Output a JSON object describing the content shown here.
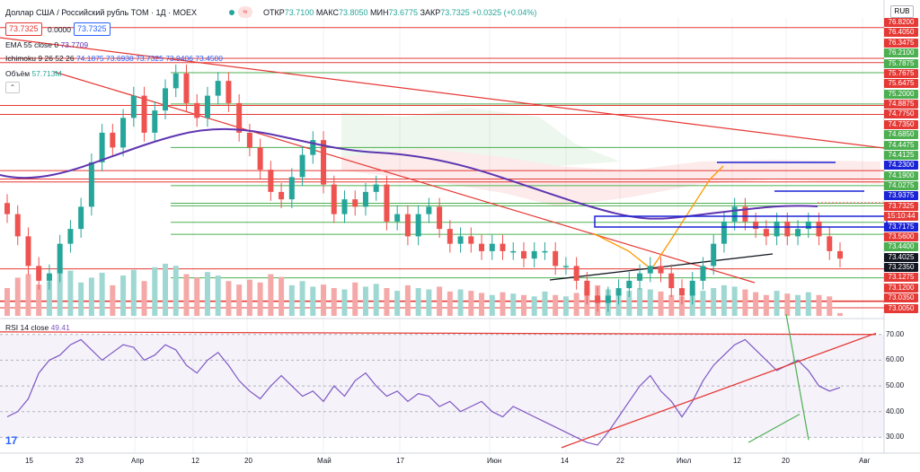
{
  "header": {
    "title": "Доллар США / Российский рубль TOM · 1Д · MOEX",
    "open_label": "ОТКР",
    "open": "73.7100",
    "high_label": "МАКС",
    "high": "73.8050",
    "low_label": "МИН",
    "low": "73.6775",
    "close_label": "ЗАКР",
    "close": "73.7325",
    "change": "+0.0325 (+0.04%)",
    "sell_box": "73.7325",
    "spread_box": "0.0000",
    "buy_box": "73.7325"
  },
  "indicators": {
    "ema_label": "EMA 55 close 0",
    "ema_value": "73.7709",
    "ichimoku_label": "Ichimoku 9 26 52 26",
    "ichimoku_values": "74.1875  73.6938  73.7325  73.9406  73.4500",
    "volume_label": "Объём",
    "volume_value": "57.713M",
    "rsi_label": "RSI 14 close",
    "rsi_value": "49.41"
  },
  "currency_button": "RUB",
  "colors": {
    "up": "#26a69a",
    "down": "#ef5350",
    "ema": "#5e35b1",
    "rsi": "#7e57c2",
    "hline_red": "#e53935",
    "hline_green": "#4caf50",
    "box_blue": "#1a23d6"
  },
  "price_axis_labels": [
    {
      "text": "76.8200",
      "color": "#e53935"
    },
    {
      "text": "76.4050",
      "color": "#e53935"
    },
    {
      "text": "76.3475",
      "color": "#e53935"
    },
    {
      "text": "76.2100",
      "color": "#4caf50"
    },
    {
      "text": "75.7875",
      "color": "#4caf50"
    },
    {
      "text": "75.7675",
      "color": "#e53935"
    },
    {
      "text": "75.6475",
      "color": "#e53935"
    },
    {
      "text": "75.2000",
      "color": "#4caf50"
    },
    {
      "text": "74.8875",
      "color": "#e53935"
    },
    {
      "text": "74.7750",
      "color": "#e53935"
    },
    {
      "text": "74.7350",
      "color": "#e53935"
    },
    {
      "text": "74.6850",
      "color": "#4caf50"
    },
    {
      "text": "74.4475",
      "color": "#4caf50"
    },
    {
      "text": "74.4125",
      "color": "#4caf50"
    },
    {
      "text": "74.2300",
      "color": "#1a23d6"
    },
    {
      "text": "74.1900",
      "color": "#4caf50"
    },
    {
      "text": "74.0275",
      "color": "#4caf50"
    },
    {
      "text": "73.9375",
      "color": "#1a23d6"
    },
    {
      "text": "73.7325",
      "color": "#e53935"
    },
    {
      "text": "15:10:44",
      "color": "#e53935"
    },
    {
      "text": "73.7175",
      "color": "#1a23d6"
    },
    {
      "text": "73.5600",
      "color": "#e53935"
    },
    {
      "text": "73.4400",
      "color": "#4caf50"
    },
    {
      "text": "73.4025",
      "color": "#131722"
    },
    {
      "text": "73.2350",
      "color": "#131722"
    },
    {
      "text": "73.1275",
      "color": "#e53935"
    },
    {
      "text": "73.1200",
      "color": "#e53935"
    },
    {
      "text": "73.0350",
      "color": "#e53935"
    },
    {
      "text": "73.0050",
      "color": "#e53935"
    }
  ],
  "rsi_axis_labels": [
    "70.00",
    "60.00",
    "50.00",
    "40.00",
    "30.00"
  ],
  "x_axis_labels": [
    "15",
    "23",
    "Апр",
    "12",
    "20",
    "Май",
    "17",
    "Июн",
    "14",
    "22",
    "Июл",
    "12",
    "20",
    "Авг"
  ],
  "chart_data": {
    "type": "candlestick",
    "symbol": "USD/RUB TOM",
    "timeframe": "1D",
    "exchange": "MOEX",
    "last_price": 73.7325,
    "rsi_last": 49.41,
    "rsi_levels": [
      70,
      60,
      50,
      40,
      30
    ],
    "closes_approx": [
      74.3,
      74.0,
      73.6,
      73.4,
      73.5,
      73.9,
      74.1,
      74.4,
      75.0,
      75.4,
      75.2,
      75.6,
      75.9,
      75.4,
      75.7,
      76.0,
      76.2,
      75.8,
      75.6,
      75.9,
      76.1,
      75.8,
      75.4,
      75.2,
      74.9,
      74.6,
      74.5,
      74.8,
      75.1,
      75.3,
      74.7,
      74.3,
      74.5,
      74.4,
      74.6,
      74.7,
      74.2,
      74.3,
      74.0,
      74.3,
      74.4,
      74.1,
      73.9,
      74.0,
      73.9,
      73.8,
      73.9,
      73.8,
      73.8,
      73.7,
      73.8,
      73.8,
      73.6,
      73.6,
      73.4,
      73.2,
      73.1,
      73.2,
      73.3,
      73.4,
      73.5,
      73.6,
      73.5,
      73.3,
      73.2,
      73.4,
      73.6,
      73.9,
      74.2,
      74.4,
      74.2,
      74.1,
      74.0,
      74.2,
      74.0,
      74.1,
      74.2,
      74.0,
      73.8,
      73.7
    ],
    "volumes_approx": [
      40,
      55,
      60,
      45,
      50,
      70,
      65,
      48,
      55,
      62,
      44,
      58,
      66,
      50,
      70,
      75,
      72,
      60,
      55,
      63,
      58,
      50,
      45,
      52,
      48,
      60,
      56,
      44,
      50,
      42,
      45,
      40,
      38,
      48,
      42,
      46,
      40,
      36,
      44,
      40,
      38,
      42,
      35,
      38,
      36,
      33,
      30,
      34,
      32,
      30,
      28,
      35,
      30,
      28,
      33,
      40,
      44,
      38,
      34,
      36,
      40,
      38,
      35,
      30,
      28,
      32,
      36,
      40,
      44,
      42,
      38,
      34,
      30,
      36,
      32,
      30,
      34,
      30,
      28,
      4
    ],
    "rsi_approx": [
      38,
      40,
      45,
      55,
      60,
      62,
      66,
      68,
      64,
      60,
      63,
      66,
      65,
      60,
      62,
      66,
      64,
      58,
      55,
      60,
      63,
      58,
      52,
      48,
      45,
      50,
      54,
      50,
      46,
      48,
      44,
      50,
      46,
      52,
      55,
      50,
      46,
      48,
      44,
      47,
      46,
      42,
      44,
      40,
      42,
      44,
      40,
      38,
      42,
      40,
      38,
      36,
      34,
      32,
      30,
      28,
      27,
      32,
      38,
      44,
      50,
      54,
      48,
      44,
      38,
      44,
      52,
      58,
      62,
      66,
      68,
      64,
      60,
      56,
      58,
      60,
      56,
      50,
      48,
      49.41
    ]
  }
}
